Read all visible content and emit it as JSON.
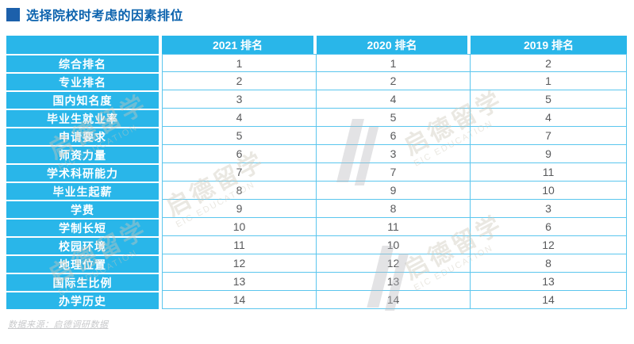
{
  "title": {
    "text": "选择院校时考虑的因素排位"
  },
  "source_note": "数据来源：启德调研数据",
  "watermark": {
    "cn": "启德留学",
    "en": "EIC EDUCATION"
  },
  "colors": {
    "title_blue": "#0c63ae",
    "bullet_blue": "#1c60ab",
    "header_cyan": "#29b6e9",
    "grid_cyan": "#5bc6ee",
    "cell_text": "#58595b",
    "source_gray": "#c8c9cb"
  },
  "chart_data": {
    "type": "table",
    "title": "选择院校时考虑的因素排位",
    "columns": [
      "",
      "2021 排名",
      "2020 排名",
      "2019 排名"
    ],
    "row_header": [
      "综合排名",
      "专业排名",
      "国内知名度",
      "毕业生就业率",
      "申请要求",
      "师资力量",
      "学术科研能力",
      "毕业生起薪",
      "学费",
      "学制长短",
      "校园环境",
      "地理位置",
      "国际生比例",
      "办学历史"
    ],
    "rows": [
      [
        1,
        1,
        2
      ],
      [
        2,
        2,
        1
      ],
      [
        3,
        4,
        5
      ],
      [
        4,
        5,
        4
      ],
      [
        5,
        6,
        7
      ],
      [
        6,
        3,
        9
      ],
      [
        7,
        7,
        11
      ],
      [
        8,
        9,
        10
      ],
      [
        9,
        8,
        3
      ],
      [
        10,
        11,
        6
      ],
      [
        11,
        10,
        12
      ],
      [
        12,
        12,
        8
      ],
      [
        13,
        13,
        13
      ],
      [
        14,
        14,
        14
      ]
    ]
  }
}
